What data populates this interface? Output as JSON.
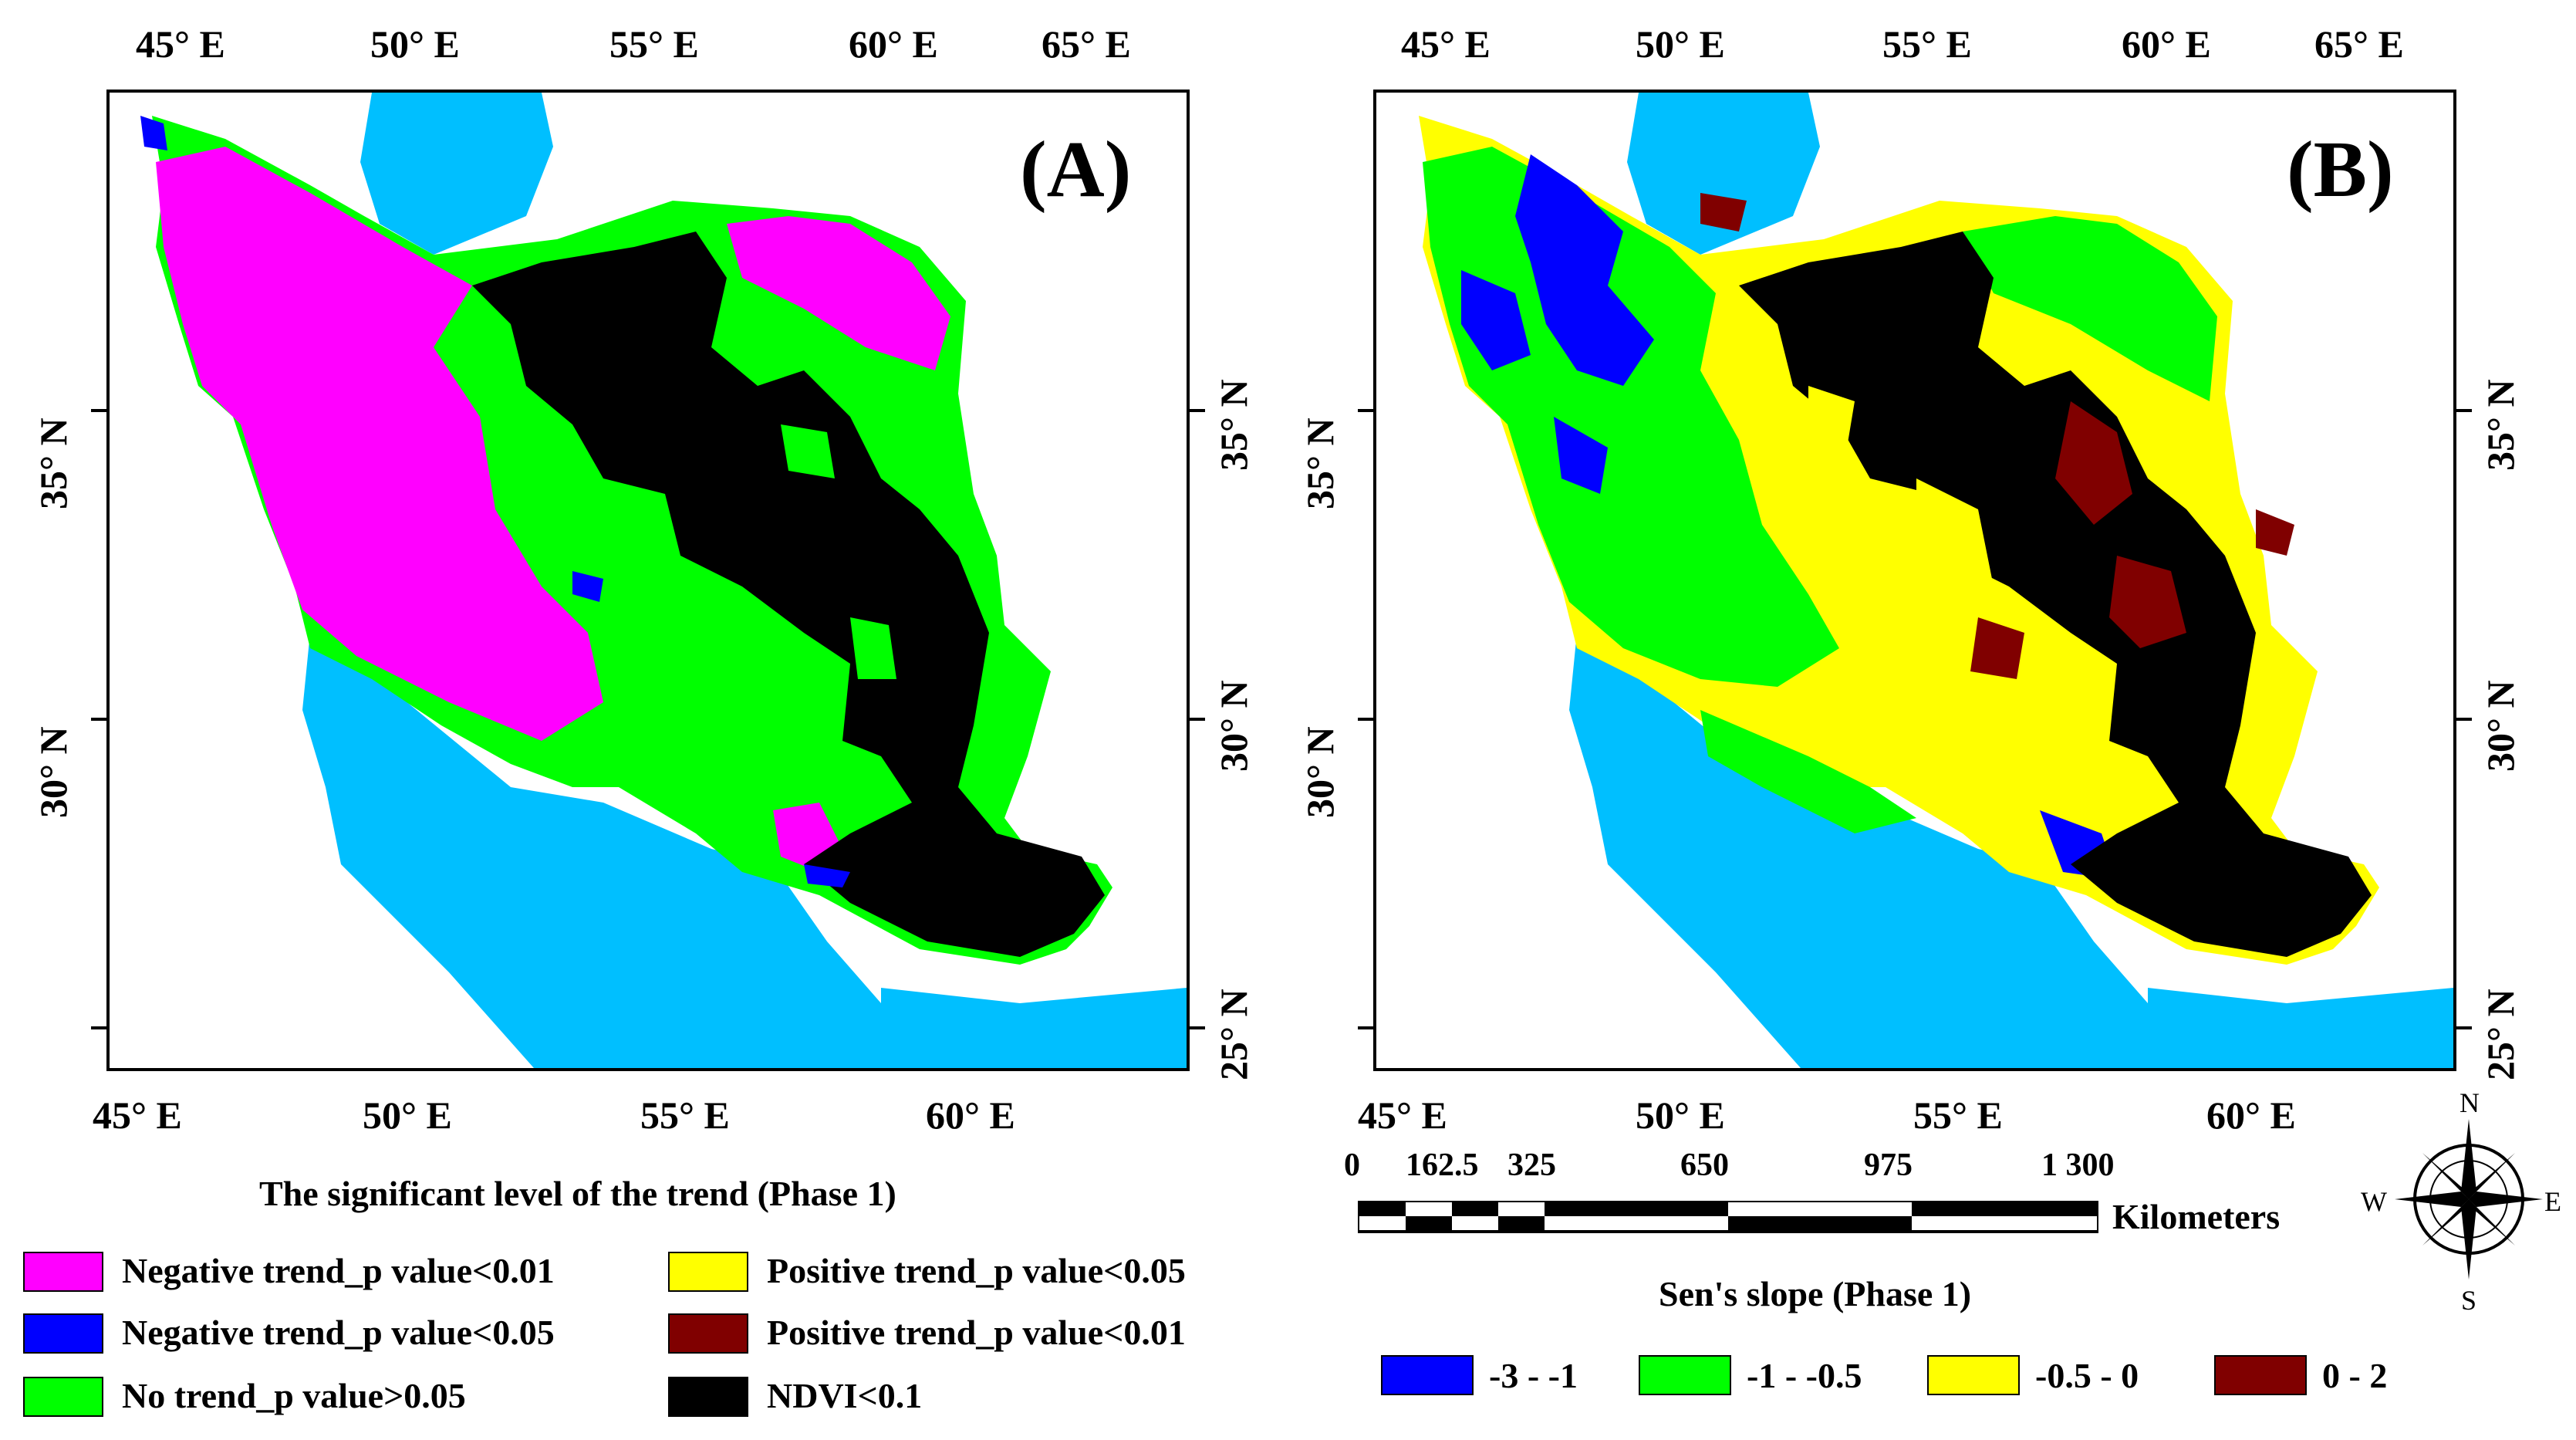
{
  "panels": [
    {
      "label": "(A)",
      "top_ticks": [
        "45° E",
        "50° E",
        "55° E",
        "60° E",
        "65° E"
      ],
      "bottom_ticks": [
        "45° E",
        "50° E",
        "55° E",
        "60° E"
      ],
      "left_ticks": [
        "35° N",
        "30° N"
      ],
      "right_ticks": [
        "35° N",
        "30° N",
        "25° N"
      ],
      "legend_title": "The significant level of the trend (Phase 1)",
      "legend": [
        {
          "label": "Negative trend_p value<0.01",
          "color": "#ff00ff"
        },
        {
          "label": "Positive trend_p value<0.05",
          "color": "#ffff00"
        },
        {
          "label": "Negative trend_p value<0.05",
          "color": "#0000ff"
        },
        {
          "label": "Positive trend_p value<0.01",
          "color": "#800000"
        },
        {
          "label": "No trend_p value>0.05",
          "color": "#00ff00"
        },
        {
          "label": "NDVI<0.1",
          "color": "#000000"
        }
      ]
    },
    {
      "label": "(B)",
      "top_ticks": [
        "45° E",
        "50° E",
        "55° E",
        "60° E",
        "65° E"
      ],
      "bottom_ticks": [
        "45° E",
        "50° E",
        "55° E",
        "60° E"
      ],
      "left_ticks": [
        "35° N",
        "30° N"
      ],
      "right_ticks": [
        "35° N",
        "30° N",
        "25° N"
      ],
      "legend_title": "Sen's slope (Phase 1)",
      "legend": [
        {
          "label": "-3 - -1",
          "color": "#0000ff"
        },
        {
          "label": "-1 - -0.5",
          "color": "#00ff00"
        },
        {
          "label": "-0.5 - 0",
          "color": "#ffff00"
        },
        {
          "label": "0 - 2",
          "color": "#800000"
        }
      ]
    }
  ],
  "scale_bar": {
    "values": [
      "0",
      "162.5",
      "325",
      "650",
      "975",
      "1 300"
    ],
    "unit": "Kilometers"
  },
  "compass": {
    "n": "N",
    "s": "S",
    "e": "E",
    "w": "W"
  },
  "colors": {
    "water": "#00bfff",
    "land": "#ffffff"
  }
}
